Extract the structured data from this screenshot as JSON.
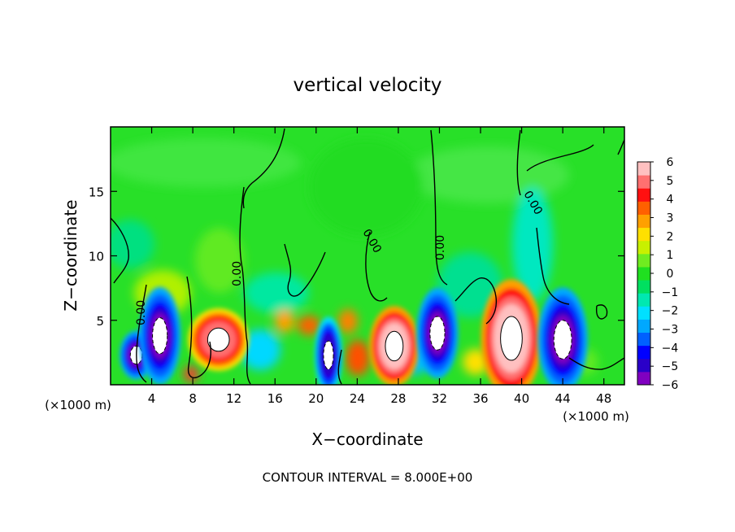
{
  "chart_data": {
    "type": "heatmap",
    "title": "vertical velocity",
    "xlabel": "X−coordinate",
    "ylabel": "Z−coordinate",
    "x_unit_left": "(×1000 m)",
    "x_unit_right": "(×1000 m)",
    "footer": "CONTOUR INTERVAL = 8.000E+00",
    "xlim": [
      0,
      50
    ],
    "ylim": [
      0,
      20
    ],
    "x_ticks": [
      4,
      8,
      12,
      16,
      20,
      24,
      28,
      32,
      36,
      40,
      44,
      48
    ],
    "x_tick_labels": [
      "4",
      "8",
      "12",
      "16",
      "20",
      "24",
      "28",
      "32",
      "36",
      "40",
      "44",
      "48"
    ],
    "y_ticks": [
      5,
      10,
      15
    ],
    "y_tick_labels": [
      "5",
      "10",
      "15"
    ],
    "colorbar": {
      "ticks": [
        6,
        5,
        4,
        3,
        2,
        1,
        0,
        -1,
        -2,
        -3,
        -4,
        -5,
        -6
      ],
      "tick_labels": [
        "6",
        "5",
        "4",
        "3",
        "2",
        "1",
        "0",
        "−1",
        "−2",
        "−3",
        "−4",
        "−5",
        "−6"
      ],
      "range": [
        -6,
        6
      ],
      "colors": [
        "#8000c0",
        "#2a00c8",
        "#0000ff",
        "#0060ff",
        "#00a8ff",
        "#00e0ff",
        "#00e8b0",
        "#00e060",
        "#20e020",
        "#70ec20",
        "#c8f000",
        "#ffe000",
        "#ffa000",
        "#ff6000",
        "#ff1010",
        "#ff7070",
        "#ffc0c0"
      ]
    },
    "zero_contour_label": "0.00",
    "cells": [
      {
        "x": 2.5,
        "z": 2.3,
        "rx": 1.2,
        "rz": 1.4,
        "w": -5.5
      },
      {
        "x": 4.8,
        "z": 3.8,
        "rx": 1.5,
        "rz": 2.8,
        "w": -5.5
      },
      {
        "x": 10.5,
        "z": 3.5,
        "rx": 2.2,
        "rz": 1.8,
        "w": 5.0
      },
      {
        "x": 21.2,
        "z": 2.3,
        "rx": 1.0,
        "rz": 2.2,
        "w": -5.0
      },
      {
        "x": 27.6,
        "z": 3.0,
        "rx": 1.8,
        "rz": 2.3,
        "w": 6.0
      },
      {
        "x": 31.8,
        "z": 4.0,
        "rx": 1.5,
        "rz": 2.6,
        "w": -5.5
      },
      {
        "x": 39.0,
        "z": 3.6,
        "rx": 2.2,
        "rz": 3.4,
        "w": 6.0
      },
      {
        "x": 44.0,
        "z": 3.5,
        "rx": 1.8,
        "rz": 3.0,
        "w": -5.5
      }
    ]
  }
}
